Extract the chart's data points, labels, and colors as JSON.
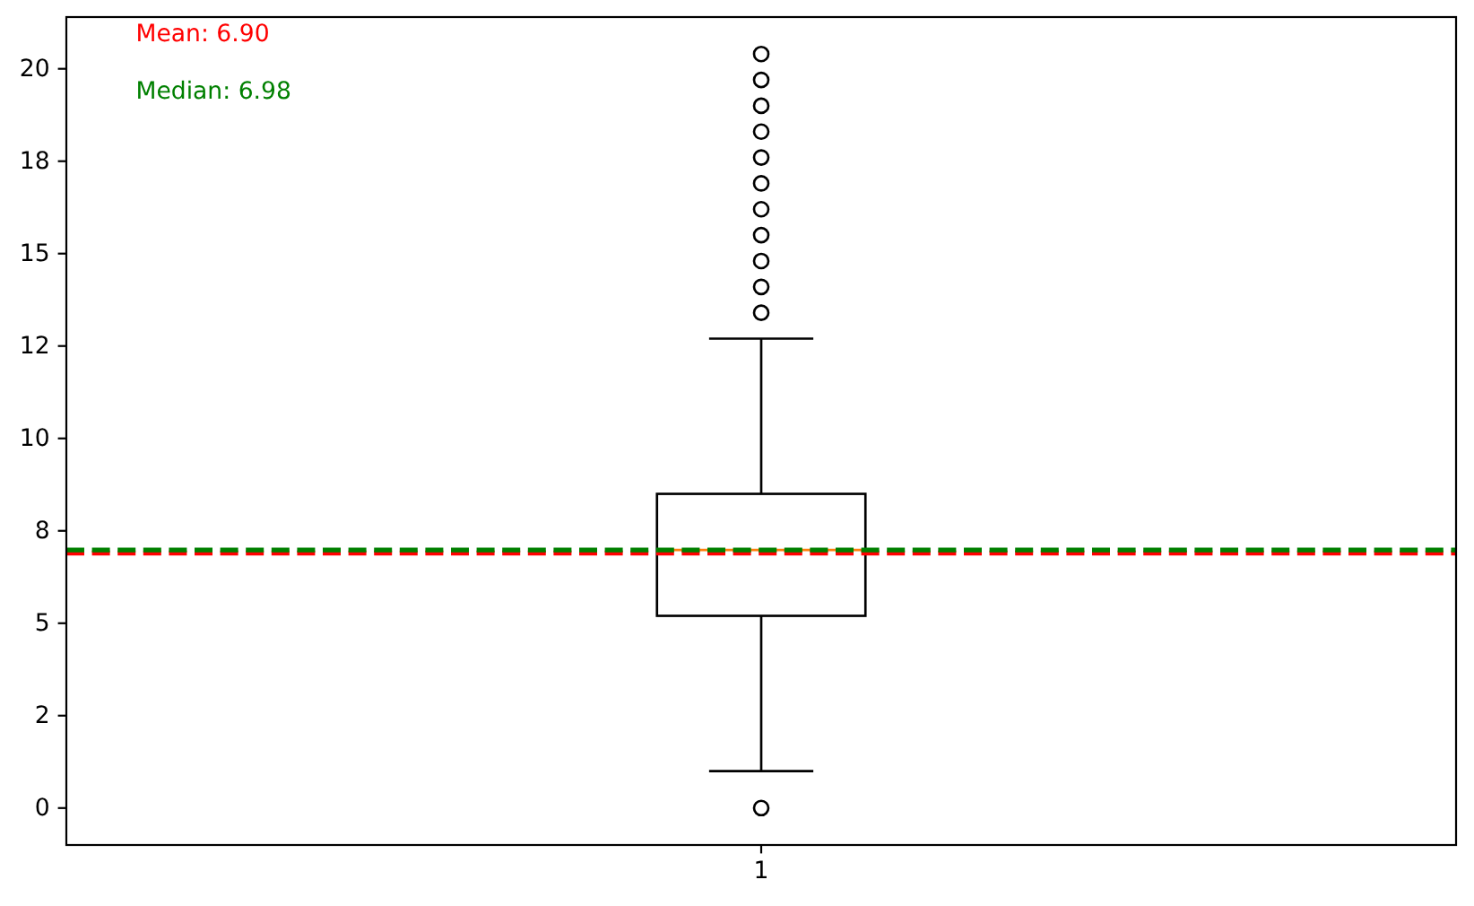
{
  "chart_data": {
    "type": "box",
    "categories": [
      "1"
    ],
    "boxes": [
      {
        "low": 1.0,
        "q1": 5.2,
        "median": 6.98,
        "q3": 8.5,
        "high": 12.7,
        "outliers": [
          0,
          13.4,
          14.1,
          14.8,
          15.5,
          16.2,
          16.9,
          17.6,
          18.3,
          19.0,
          19.7,
          20.4
        ]
      }
    ],
    "ylim": [
      -1.0,
      21.4
    ],
    "yticks": [
      0,
      {
        "value": 2.5,
        "label": "2"
      },
      5,
      {
        "value": 7.5,
        "label": "8"
      },
      10,
      {
        "value": 12.5,
        "label": "12"
      },
      15,
      {
        "value": 17.5,
        "label": "18"
      },
      20
    ],
    "ref_lines": [
      {
        "axis": "y",
        "value": 6.9,
        "label": "Mean: 6.90",
        "color": "#ff0000",
        "line_style": "dashed"
      },
      {
        "axis": "y",
        "value": 6.98,
        "label": "Median: 6.98",
        "color": "#008000",
        "line_style": "dashed"
      }
    ]
  }
}
